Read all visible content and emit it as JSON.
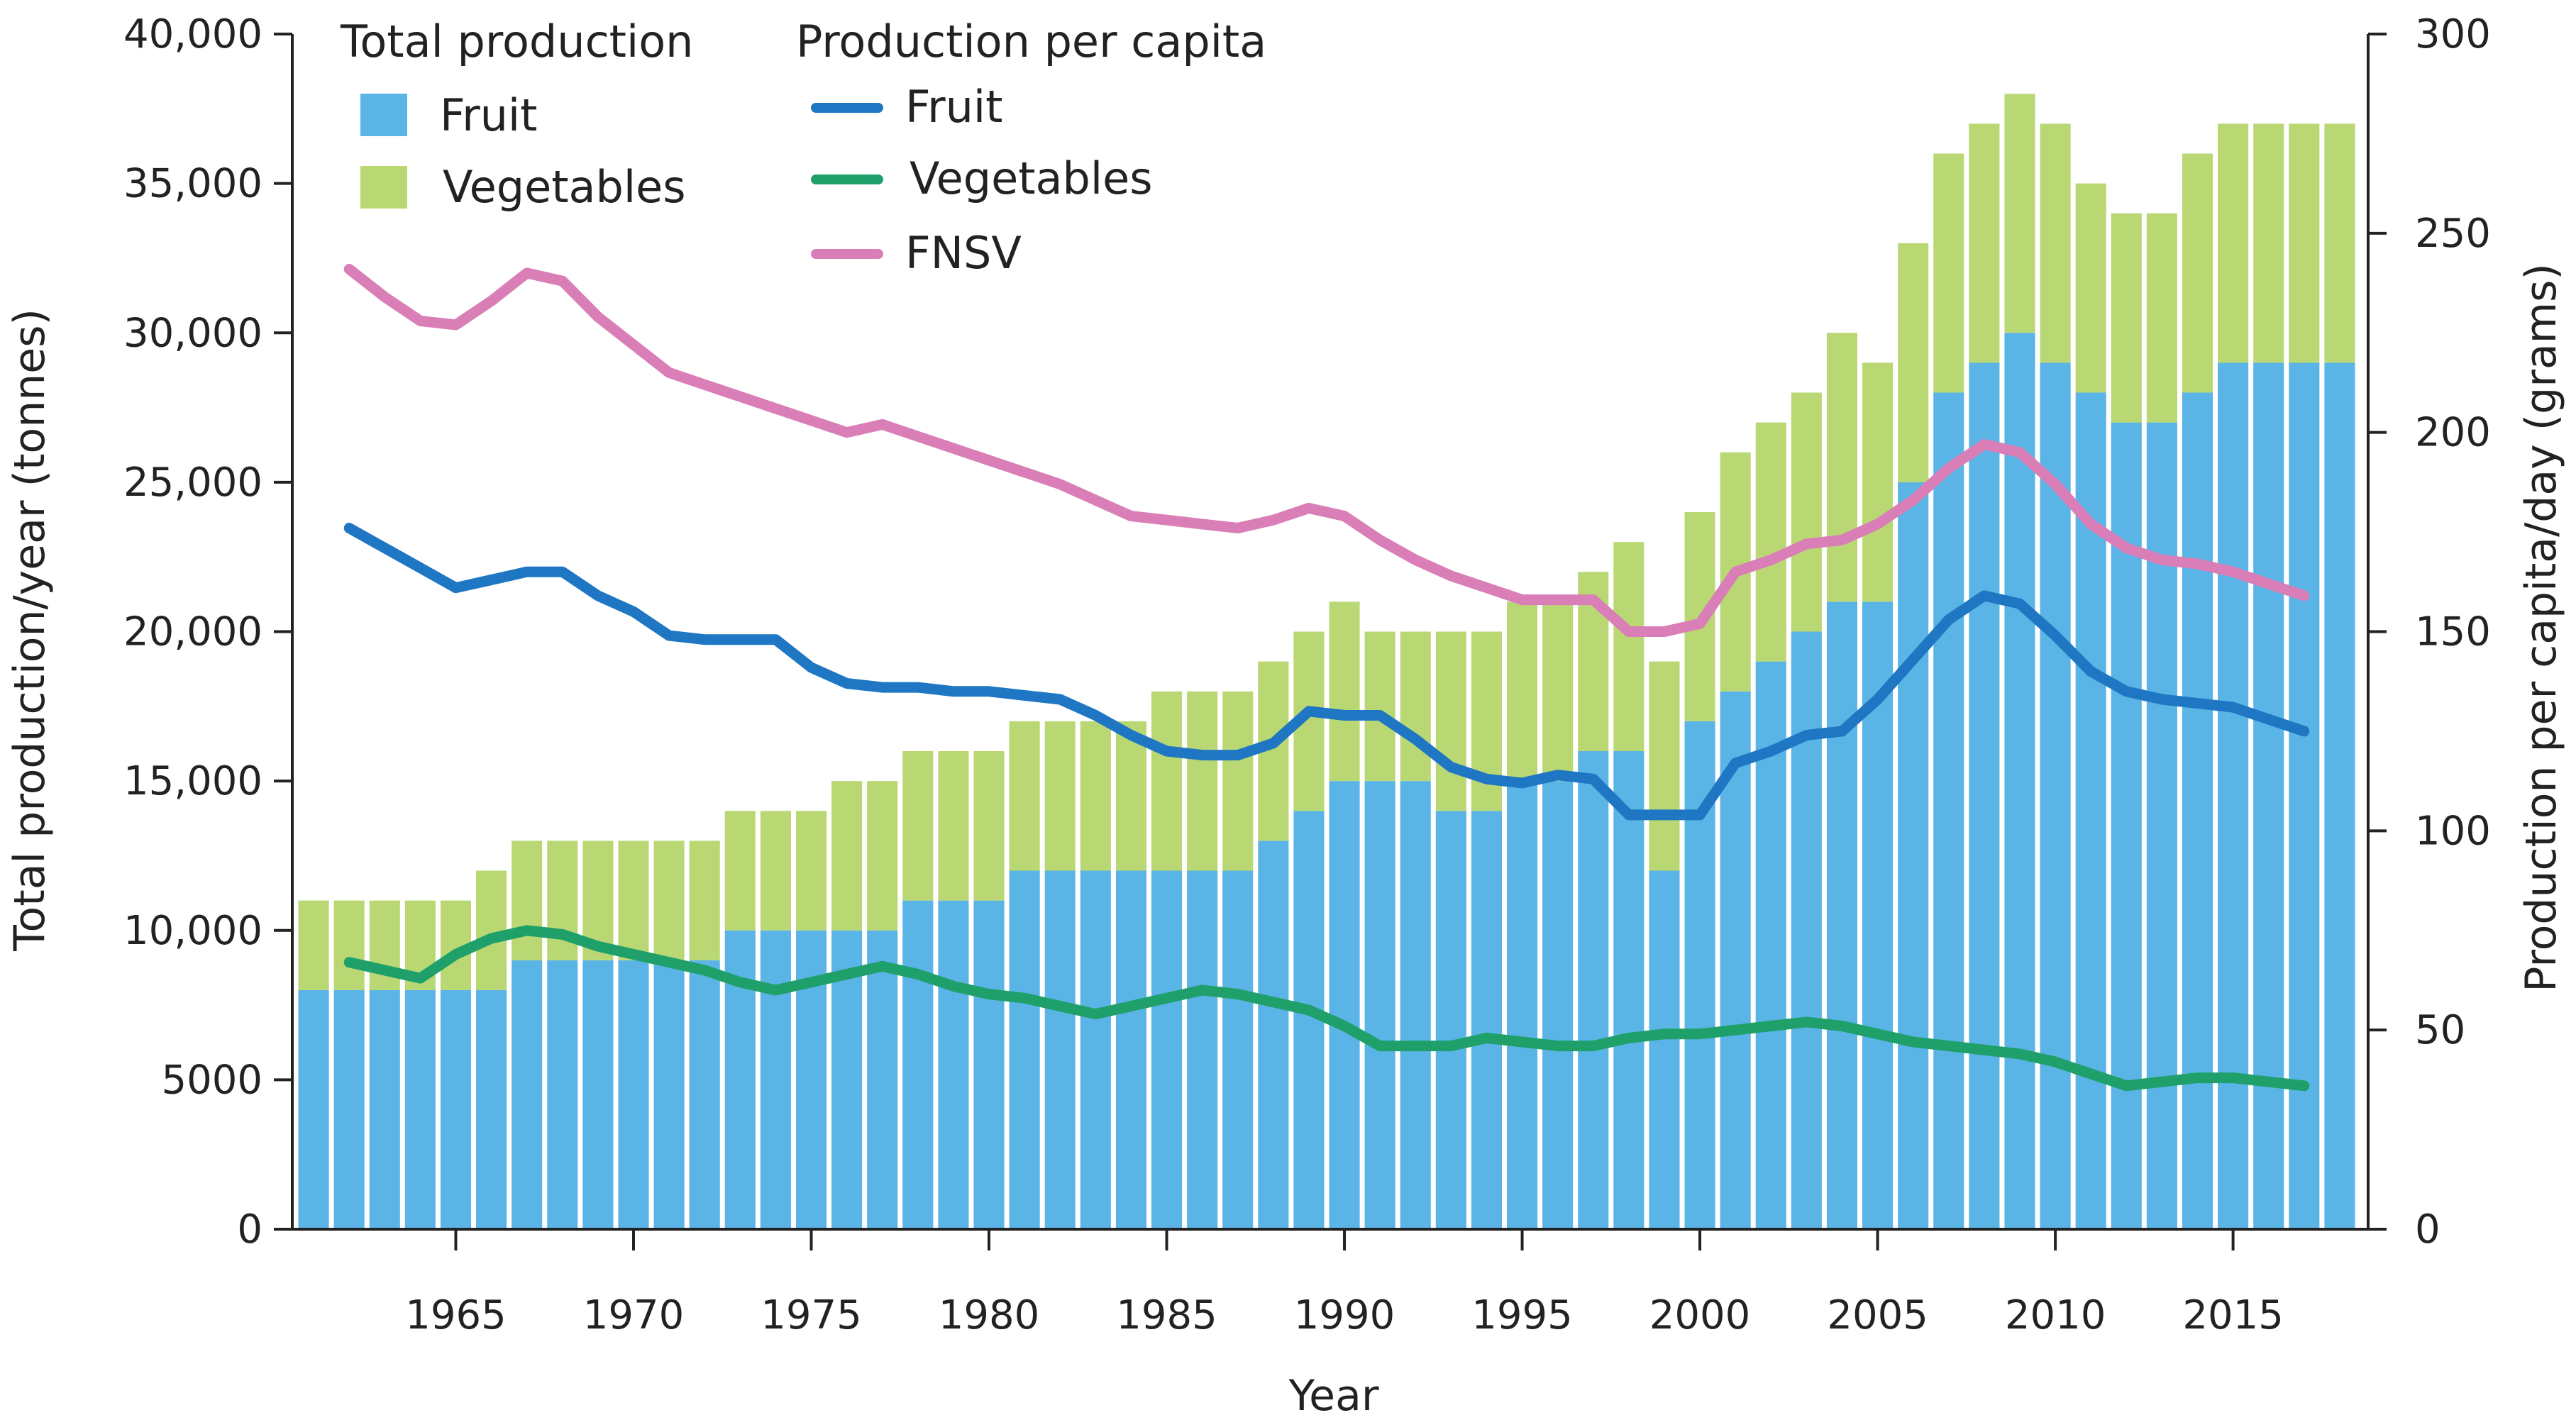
{
  "chart_data": {
    "type": "bar+line",
    "title": "",
    "xlabel": "Year",
    "ylabel_left": "Total production/year (tonnes)",
    "ylabel_right": "Production per capita/day (grams)",
    "ylim_left": [
      0,
      40000
    ],
    "ylim_right": [
      0,
      300
    ],
    "y_ticks_left": [
      "0",
      "5000",
      "10,000",
      "15,000",
      "20,000",
      "25,000",
      "30,000",
      "35,000",
      "40,000"
    ],
    "y_tick_values_left": [
      0,
      5000,
      10000,
      15000,
      20000,
      25000,
      30000,
      35000,
      40000
    ],
    "y_ticks_right": [
      "0",
      "50",
      "100",
      "150",
      "200",
      "250",
      "300"
    ],
    "y_tick_values_right": [
      0,
      50,
      100,
      150,
      200,
      250,
      300
    ],
    "x_ticks": [
      "1965",
      "1970",
      "1975",
      "1980",
      "1985",
      "1990",
      "1995",
      "2000",
      "2005",
      "2010",
      "2015"
    ],
    "x_tick_values": [
      1965,
      1970,
      1975,
      1980,
      1985,
      1990,
      1995,
      2000,
      2005,
      2010,
      2015
    ],
    "xlim": [
      1960.4,
      2018.8
    ],
    "years": [
      1961,
      1962,
      1963,
      1964,
      1965,
      1966,
      1967,
      1968,
      1969,
      1970,
      1971,
      1972,
      1973,
      1974,
      1975,
      1976,
      1977,
      1978,
      1979,
      1980,
      1981,
      1982,
      1983,
      1984,
      1985,
      1986,
      1987,
      1988,
      1989,
      1990,
      1991,
      1992,
      1993,
      1994,
      1995,
      1996,
      1997,
      1998,
      1999,
      2000,
      2001,
      2002,
      2003,
      2004,
      2005,
      2006,
      2007,
      2008,
      2009,
      2010,
      2011,
      2012,
      2013,
      2014,
      2015,
      2016,
      2017,
      2018
    ],
    "bar_series": [
      {
        "name": "Fruit",
        "color": "#5ab4e5",
        "values": [
          8000,
          8000,
          8000,
          8000,
          8000,
          8000,
          9000,
          9000,
          9000,
          9000,
          9000,
          9000,
          10000,
          10000,
          10000,
          10000,
          10000,
          11000,
          11000,
          11000,
          12000,
          12000,
          12000,
          12000,
          12000,
          12000,
          12000,
          13000,
          14000,
          15000,
          15000,
          15000,
          14000,
          14000,
          15000,
          15000,
          16000,
          16000,
          12000,
          17000,
          18000,
          19000,
          20000,
          21000,
          21000,
          25000,
          28000,
          29000,
          30000,
          29000,
          28000,
          27000,
          27000,
          28000,
          29000,
          29000,
          29000,
          29000
        ]
      },
      {
        "name": "Vegetables",
        "color": "#b9d874",
        "values": [
          3000,
          3000,
          3000,
          3000,
          3000,
          4000,
          4000,
          4000,
          4000,
          4000,
          4000,
          4000,
          4000,
          4000,
          4000,
          5000,
          5000,
          5000,
          5000,
          5000,
          5000,
          5000,
          5000,
          5000,
          6000,
          6000,
          6000,
          6000,
          6000,
          6000,
          5000,
          5000,
          6000,
          6000,
          6000,
          6000,
          6000,
          7000,
          7000,
          7000,
          8000,
          8000,
          8000,
          9000,
          8000,
          8000,
          8000,
          8000,
          8000,
          8000,
          7000,
          7000,
          7000,
          8000,
          8000,
          8000,
          8000,
          8000
        ]
      }
    ],
    "line_series": [
      {
        "name": "Fruit",
        "color": "#1f77c4",
        "x": [
          1962,
          1963,
          1964,
          1965,
          1966,
          1967,
          1968,
          1969,
          1970,
          1971,
          1972,
          1973,
          1974,
          1975,
          1976,
          1977,
          1978,
          1979,
          1980,
          1981,
          1982,
          1983,
          1984,
          1985,
          1986,
          1987,
          1988,
          1989,
          1990,
          1991,
          1992,
          1993,
          1994,
          1995,
          1996,
          1997,
          1998,
          1999,
          2000,
          2001,
          2002,
          2003,
          2004,
          2005,
          2006,
          2007,
          2008,
          2009,
          2010,
          2011,
          2012,
          2013,
          2014,
          2015,
          2016,
          2017
        ],
        "values": [
          176,
          171,
          166,
          161,
          163,
          165,
          165,
          159,
          155,
          149,
          148,
          148,
          148,
          141,
          137,
          136,
          136,
          135,
          135,
          134,
          133,
          129,
          124,
          120,
          119,
          119,
          122,
          130,
          129,
          129,
          123,
          116,
          113,
          112,
          114,
          113,
          104,
          104,
          104,
          117,
          120,
          124,
          125,
          133,
          143,
          153,
          159,
          157,
          149,
          140,
          135,
          133,
          132,
          131,
          128,
          125
        ]
      },
      {
        "name": "Vegetables",
        "color": "#1fa06b",
        "x": [
          1962,
          1963,
          1964,
          1965,
          1966,
          1967,
          1968,
          1969,
          1970,
          1971,
          1972,
          1973,
          1974,
          1975,
          1976,
          1977,
          1978,
          1979,
          1980,
          1981,
          1982,
          1983,
          1984,
          1985,
          1986,
          1987,
          1988,
          1989,
          1990,
          1991,
          1992,
          1993,
          1994,
          1995,
          1996,
          1997,
          1998,
          1999,
          2000,
          2001,
          2002,
          2003,
          2004,
          2005,
          2006,
          2007,
          2008,
          2009,
          2010,
          2011,
          2012,
          2013,
          2014,
          2015,
          2016,
          2017
        ],
        "values": [
          67,
          65,
          63,
          69,
          73,
          75,
          74,
          71,
          69,
          67,
          65,
          62,
          60,
          62,
          64,
          66,
          64,
          61,
          59,
          58,
          56,
          54,
          56,
          58,
          60,
          59,
          57,
          55,
          51,
          46,
          46,
          46,
          48,
          47,
          46,
          46,
          48,
          49,
          49,
          50,
          51,
          52,
          51,
          49,
          47,
          46,
          45,
          44,
          42,
          39,
          36,
          37,
          38,
          38,
          37,
          36
        ]
      },
      {
        "name": "FNSV",
        "color": "#d97eb6",
        "x": [
          1962,
          1963,
          1964,
          1965,
          1966,
          1967,
          1968,
          1969,
          1970,
          1971,
          1972,
          1973,
          1974,
          1975,
          1976,
          1977,
          1978,
          1979,
          1980,
          1981,
          1982,
          1983,
          1984,
          1985,
          1986,
          1987,
          1988,
          1989,
          1990,
          1991,
          1992,
          1993,
          1994,
          1995,
          1996,
          1997,
          1998,
          1999,
          2000,
          2001,
          2002,
          2003,
          2004,
          2005,
          2006,
          2007,
          2008,
          2009,
          2010,
          2011,
          2012,
          2013,
          2014,
          2015,
          2016,
          2017
        ],
        "values": [
          241,
          234,
          228,
          227,
          233,
          240,
          238,
          229,
          222,
          215,
          212,
          209,
          206,
          203,
          200,
          202,
          199,
          196,
          193,
          190,
          187,
          183,
          179,
          178,
          177,
          176,
          178,
          181,
          179,
          173,
          168,
          164,
          161,
          158,
          158,
          158,
          150,
          150,
          152,
          165,
          168,
          172,
          173,
          177,
          183,
          191,
          197,
          195,
          187,
          177,
          171,
          168,
          167,
          165,
          162,
          159
        ]
      }
    ],
    "legend": {
      "bars_heading": "Total production",
      "bars": [
        {
          "label": "Fruit",
          "color": "#5ab4e5"
        },
        {
          "label": "Vegetables",
          "color": "#b9d874"
        }
      ],
      "lines_heading": "Production per capita",
      "lines": [
        {
          "label": "Fruit",
          "color": "#1f77c4"
        },
        {
          "label": "Vegetables",
          "color": "#1fa06b"
        },
        {
          "label": "FNSV",
          "color": "#d97eb6"
        }
      ],
      "position": "top-left"
    },
    "grid": false,
    "axis_color": "#222222"
  }
}
